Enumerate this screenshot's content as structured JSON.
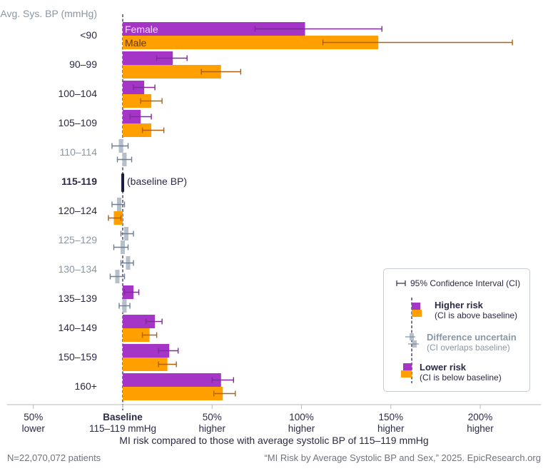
{
  "colors": {
    "female": "#a535c6",
    "male": "#ff9f00",
    "female_ci": "#7f2a99",
    "male_ci": "#b06010",
    "uncertain": "#b5c0cc",
    "uncertain_ci": "#6f7f8f",
    "baseline": "#1f1d3f",
    "label_strong": "#2b2a44",
    "label_muted": "#8a97a5",
    "axis": "#b8b8b8",
    "footer": "#6f7380"
  },
  "chart_data": {
    "type": "bar",
    "orientation": "horizontal",
    "title": "",
    "ylabel": "Avg. Sys. BP (mmHg)",
    "xlabel": "MI risk compared to those with average systolic BP of 115–119 mmHg",
    "xlim": [
      -55,
      232
    ],
    "x_unit": "% difference in MI risk vs baseline",
    "x_ticks": [
      {
        "value": -50,
        "line1": "50%",
        "line2": "lower",
        "bold": false
      },
      {
        "value": 0,
        "line1": "Baseline",
        "line2": "115–119 mmHg",
        "bold": true
      },
      {
        "value": 50,
        "line1": "50%",
        "line2": "higher",
        "bold": false
      },
      {
        "value": 100,
        "line1": "100%",
        "line2": "higher",
        "bold": false
      },
      {
        "value": 150,
        "line1": "150%",
        "line2": "higher",
        "bold": false
      },
      {
        "value": 200,
        "line1": "200%",
        "line2": "higher",
        "bold": false
      }
    ],
    "series_labels": {
      "female": "Female",
      "male": "Male"
    },
    "baseline_note": "(baseline BP)",
    "categories": [
      {
        "label": "<90",
        "status": "significant",
        "female": {
          "value": 102,
          "ci": [
            74,
            145
          ],
          "sig": true
        },
        "male": {
          "value": 143,
          "ci": [
            112,
            218
          ],
          "sig": true
        }
      },
      {
        "label": "90–99",
        "status": "significant",
        "female": {
          "value": 28,
          "ci": [
            19,
            36
          ],
          "sig": true
        },
        "male": {
          "value": 55,
          "ci": [
            44,
            66
          ],
          "sig": true
        }
      },
      {
        "label": "100–104",
        "status": "significant",
        "female": {
          "value": 12,
          "ci": [
            6,
            18
          ],
          "sig": true
        },
        "male": {
          "value": 16,
          "ci": [
            10,
            22
          ],
          "sig": true
        }
      },
      {
        "label": "105–109",
        "status": "significant",
        "female": {
          "value": 10,
          "ci": [
            4,
            16
          ],
          "sig": true
        },
        "male": {
          "value": 16,
          "ci": [
            11,
            23
          ],
          "sig": true
        }
      },
      {
        "label": "110–114",
        "status": "uncertain",
        "female": {
          "value": -1,
          "ci": [
            -6,
            3
          ],
          "sig": false
        },
        "male": {
          "value": 1,
          "ci": [
            -3,
            5
          ],
          "sig": false
        }
      },
      {
        "label": "115-119",
        "status": "baseline"
      },
      {
        "label": "120–124",
        "status": "significant",
        "female": {
          "value": -2,
          "ci": [
            -6,
            1
          ],
          "sig": false
        },
        "male": {
          "value": -5,
          "ci": [
            -8,
            -1
          ],
          "sig": true
        }
      },
      {
        "label": "125–129",
        "status": "uncertain",
        "female": {
          "value": 2,
          "ci": [
            -1,
            6
          ],
          "sig": false
        },
        "male": {
          "value": 0,
          "ci": [
            -5,
            3
          ],
          "sig": false
        }
      },
      {
        "label": "130–134",
        "status": "uncertain",
        "female": {
          "value": 3,
          "ci": [
            -1,
            6
          ],
          "sig": false
        },
        "male": {
          "value": -3,
          "ci": [
            -7,
            1
          ],
          "sig": false
        }
      },
      {
        "label": "135–139",
        "status": "significant",
        "female": {
          "value": 6,
          "ci": [
            1,
            9
          ],
          "sig": true
        },
        "male": {
          "value": 1,
          "ci": [
            -2,
            4
          ],
          "sig": false
        }
      },
      {
        "label": "140–149",
        "status": "significant",
        "female": {
          "value": 18,
          "ci": [
            13,
            22
          ],
          "sig": true
        },
        "male": {
          "value": 15,
          "ci": [
            11,
            19
          ],
          "sig": true
        }
      },
      {
        "label": "150–159",
        "status": "significant",
        "female": {
          "value": 26,
          "ci": [
            20,
            31
          ],
          "sig": true
        },
        "male": {
          "value": 25,
          "ci": [
            20,
            30
          ],
          "sig": true
        }
      },
      {
        "label": "160+",
        "status": "significant",
        "female": {
          "value": 55,
          "ci": [
            50,
            62
          ],
          "sig": true
        },
        "male": {
          "value": 56,
          "ci": [
            51,
            63
          ],
          "sig": true
        }
      }
    ],
    "legend": {
      "placement": "bottom-right",
      "ci_label": "95% Confidence Interval (CI)",
      "items": [
        {
          "title": "Higher risk",
          "subtitle": "(CI is above baseline)",
          "kind": "higher"
        },
        {
          "title": "Difference uncertain",
          "subtitle": "(CI overlaps baseline)",
          "kind": "uncertain"
        },
        {
          "title": "Lower risk",
          "subtitle": "(CI is below baseline)",
          "kind": "lower"
        }
      ]
    },
    "grid": false
  },
  "footer": {
    "sample_size": "N=22,070,072 patients",
    "citation": "“MI Risk by Average Systolic BP and Sex,” 2025. EpicResearch.org"
  }
}
